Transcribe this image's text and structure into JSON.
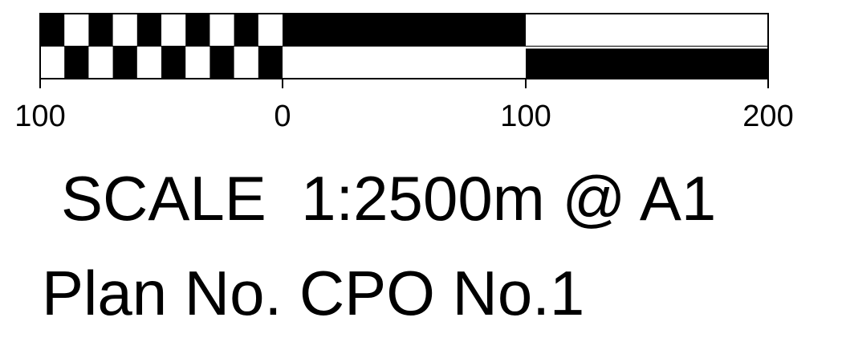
{
  "scale_bar": {
    "tick_labels": [
      "100",
      "0",
      "100",
      "200"
    ],
    "subdivisions_left": 10,
    "fill_color": "#000000",
    "background_color": "#ffffff"
  },
  "scale_text": "SCALE  1:2500m @ A1",
  "plan_text": "Plan No. CPO No.1"
}
